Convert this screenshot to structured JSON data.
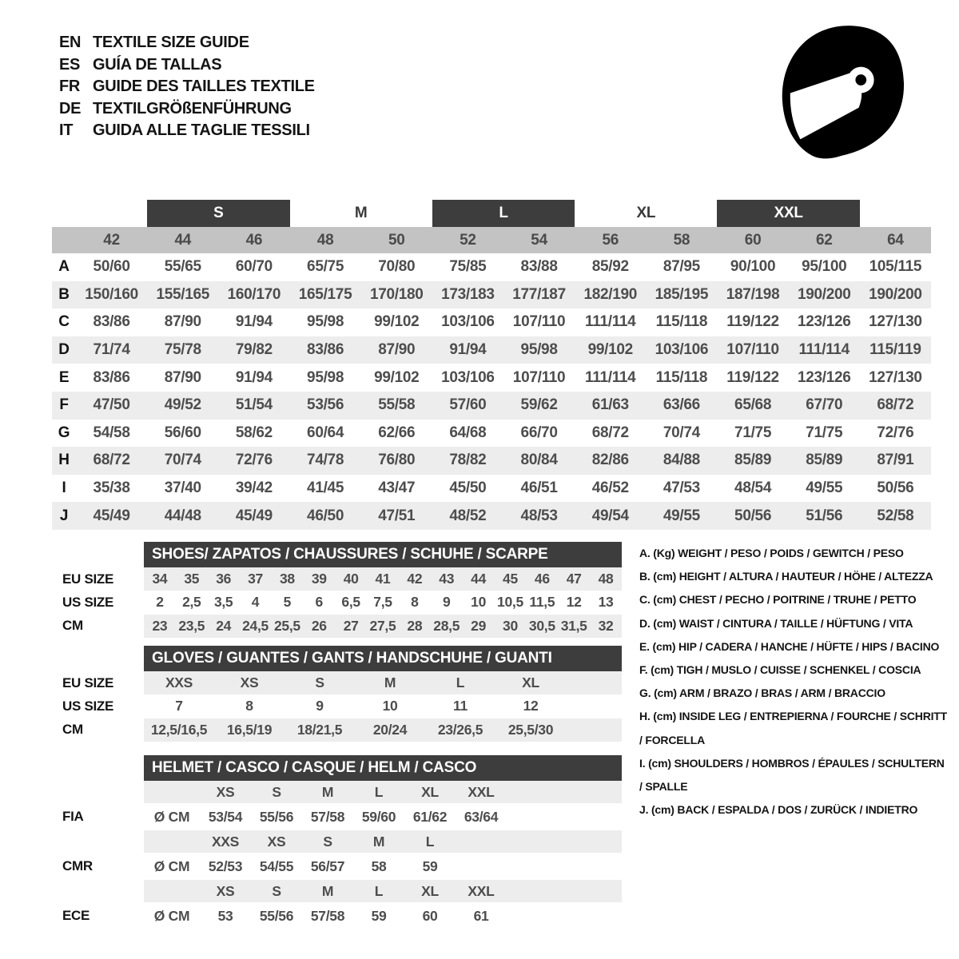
{
  "languages": [
    {
      "code": "EN",
      "label": "TEXTILE SIZE GUIDE"
    },
    {
      "code": "ES",
      "label": "GUÍA DE TALLAS"
    },
    {
      "code": "FR",
      "label": "GUIDE DES TAILLES TEXTILE"
    },
    {
      "code": "DE",
      "label": "TEXTILGRÖßENFÜHRUNG"
    },
    {
      "code": "IT",
      "label": "GUIDA ALLE TAGLIE TESSILI"
    }
  ],
  "icons": {
    "helmet": "full-face racing helmet"
  },
  "colors": {
    "dark_band": "#3d3d3d",
    "header_gray": "#c3c3c3",
    "stripe_gray": "#ededed",
    "value_text": "#4d4d4d"
  },
  "main_table": {
    "bands": [
      {
        "label": "S",
        "dark": true
      },
      {
        "label": "M",
        "dark": false
      },
      {
        "label": "L",
        "dark": true
      },
      {
        "label": "XL",
        "dark": false
      },
      {
        "label": "XXL",
        "dark": true
      }
    ],
    "columns": [
      "42",
      "44",
      "46",
      "48",
      "50",
      "52",
      "54",
      "56",
      "58",
      "60",
      "62",
      "64"
    ],
    "rows": [
      {
        "label": "A",
        "values": [
          "50/60",
          "55/65",
          "60/70",
          "65/75",
          "70/80",
          "75/85",
          "83/88",
          "85/92",
          "87/95",
          "90/100",
          "95/100",
          "105/115"
        ]
      },
      {
        "label": "B",
        "values": [
          "150/160",
          "155/165",
          "160/170",
          "165/175",
          "170/180",
          "173/183",
          "177/187",
          "182/190",
          "185/195",
          "187/198",
          "190/200",
          "190/200"
        ]
      },
      {
        "label": "C",
        "values": [
          "83/86",
          "87/90",
          "91/94",
          "95/98",
          "99/102",
          "103/106",
          "107/110",
          "111/114",
          "115/118",
          "119/122",
          "123/126",
          "127/130"
        ]
      },
      {
        "label": "D",
        "values": [
          "71/74",
          "75/78",
          "79/82",
          "83/86",
          "87/90",
          "91/94",
          "95/98",
          "99/102",
          "103/106",
          "107/110",
          "111/114",
          "115/119"
        ]
      },
      {
        "label": "E",
        "values": [
          "83/86",
          "87/90",
          "91/94",
          "95/98",
          "99/102",
          "103/106",
          "107/110",
          "111/114",
          "115/118",
          "119/122",
          "123/126",
          "127/130"
        ]
      },
      {
        "label": "F",
        "values": [
          "47/50",
          "49/52",
          "51/54",
          "53/56",
          "55/58",
          "57/60",
          "59/62",
          "61/63",
          "63/66",
          "65/68",
          "67/70",
          "68/72"
        ]
      },
      {
        "label": "G",
        "values": [
          "54/58",
          "56/60",
          "58/62",
          "60/64",
          "62/66",
          "64/68",
          "66/70",
          "68/72",
          "70/74",
          "71/75",
          "71/75",
          "72/76"
        ]
      },
      {
        "label": "H",
        "values": [
          "68/72",
          "70/74",
          "72/76",
          "74/78",
          "76/80",
          "78/82",
          "80/84",
          "82/86",
          "84/88",
          "85/89",
          "85/89",
          "87/91"
        ]
      },
      {
        "label": "I",
        "values": [
          "35/38",
          "37/40",
          "39/42",
          "41/45",
          "43/47",
          "45/50",
          "46/51",
          "46/52",
          "47/53",
          "48/54",
          "49/55",
          "50/56"
        ]
      },
      {
        "label": "J",
        "values": [
          "45/49",
          "44/48",
          "45/49",
          "46/50",
          "47/51",
          "48/52",
          "48/53",
          "49/54",
          "49/55",
          "50/56",
          "51/56",
          "52/58"
        ]
      }
    ]
  },
  "shoes": {
    "title": "SHOES/ ZAPATOS / CHAUSSURES / SCHUHE / SCARPE",
    "rows": [
      {
        "label": "EU SIZE",
        "shaded": true,
        "values": [
          "34",
          "35",
          "36",
          "37",
          "38",
          "39",
          "40",
          "41",
          "42",
          "43",
          "44",
          "45",
          "46",
          "47",
          "48"
        ]
      },
      {
        "label": "US SIZE",
        "shaded": false,
        "values": [
          "2",
          "2,5",
          "3,5",
          "4",
          "5",
          "6",
          "6,5",
          "7,5",
          "8",
          "9",
          "10",
          "10,5",
          "11,5",
          "12",
          "13"
        ]
      },
      {
        "label": "CM",
        "shaded": true,
        "values": [
          "23",
          "23,5",
          "24",
          "24,5",
          "25,5",
          "26",
          "27",
          "27,5",
          "28",
          "28,5",
          "29",
          "30",
          "30,5",
          "31,5",
          "32"
        ]
      }
    ]
  },
  "gloves": {
    "title": "GLOVES / GUANTES / GANTS / HANDSCHUHE / GUANTI",
    "rows": [
      {
        "label": "EU SIZE",
        "shaded": true,
        "values": [
          "XXS",
          "XS",
          "S",
          "M",
          "L",
          "XL"
        ]
      },
      {
        "label": "US SIZE",
        "shaded": false,
        "values": [
          "7",
          "8",
          "9",
          "10",
          "11",
          "12"
        ]
      },
      {
        "label": "CM",
        "shaded": true,
        "values": [
          "12,5/16,5",
          "16,5/19",
          "18/21,5",
          "20/24",
          "23/26,5",
          "25,5/30"
        ]
      }
    ]
  },
  "helmet": {
    "title": "HELMET / CASCO / CASQUE / HELM / CASCO",
    "sections": [
      {
        "label": "FIA",
        "unit": "Ø CM",
        "sizes": [
          "XS",
          "S",
          "M",
          "L",
          "XL",
          "XXL"
        ],
        "values": [
          "53/54",
          "55/56",
          "57/58",
          "59/60",
          "61/62",
          "63/64"
        ]
      },
      {
        "label": "CMR",
        "unit": "Ø CM",
        "sizes": [
          "XXS",
          "XS",
          "S",
          "M",
          "L"
        ],
        "values": [
          "52/53",
          "54/55",
          "56/57",
          "58",
          "59"
        ]
      },
      {
        "label": "ECE",
        "unit": "Ø CM",
        "sizes": [
          "XS",
          "S",
          "M",
          "L",
          "XL",
          "XXL"
        ],
        "values": [
          "53",
          "55/56",
          "57/58",
          "59",
          "60",
          "61"
        ]
      }
    ]
  },
  "legend": {
    "items": [
      {
        "key": "A.",
        "unit": "(Kg)",
        "text": "WEIGHT / PESO / POIDS / GEWITCH / PESO"
      },
      {
        "key": "B.",
        "unit": "(cm)",
        "text": "HEIGHT / ALTURA / HAUTEUR / HÖHE / ALTEZZA"
      },
      {
        "key": "C.",
        "unit": "(cm)",
        "text": "CHEST / PECHO / POITRINE / TRUHE / PETTO"
      },
      {
        "key": "D.",
        "unit": "(cm)",
        "text": "WAIST / CINTURA / TAILLE / HÜFTUNG / VITA"
      },
      {
        "key": "E.",
        "unit": "(cm)",
        "text": "HIP / CADERA / HANCHE / HÜFTE / HIPS / BACINO"
      },
      {
        "key": "F.",
        "unit": "(cm)",
        "text": "TIGH / MUSLO / CUISSE / SCHENKEL / COSCIA"
      },
      {
        "key": "G.",
        "unit": "(cm)",
        "text": "ARM / BRAZO / BRAS / ARM / BRACCIO"
      },
      {
        "key": "H.",
        "unit": "(cm)",
        "text": "INSIDE LEG / ENTREPIERNA / FOURCHE / SCHRITT / FORCELLA"
      },
      {
        "key": "I.",
        "unit": "(cm)",
        "text": "SHOULDERS / HOMBROS / ÉPAULES / SCHULTERN / SPALLE"
      },
      {
        "key": "J.",
        "unit": "(cm)",
        "text": "BACK / ESPALDA / DOS / ZURÜCK / INDIETRO"
      }
    ]
  }
}
